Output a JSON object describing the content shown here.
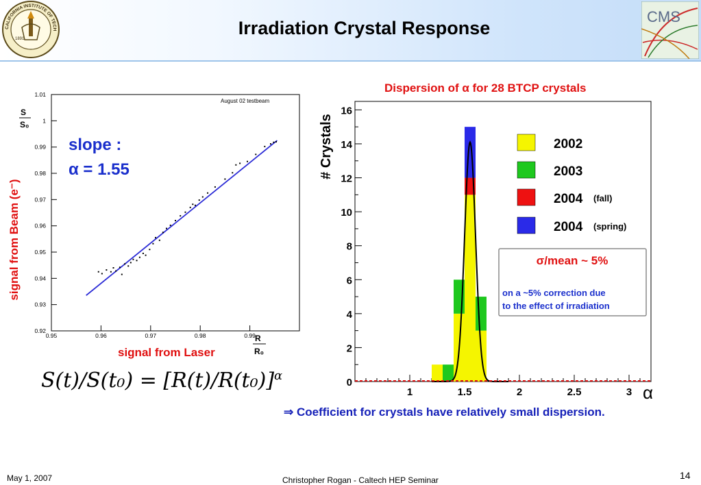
{
  "header": {
    "title": "Irradiation Crystal Response",
    "left_logo": {
      "icon": "caltech-seal-icon",
      "text": "CALIFORNIA INSTITUTE OF TECHNOLOGY",
      "year": "1891"
    },
    "right_logo": {
      "icon": "cms-logo-icon",
      "text": "CMS"
    }
  },
  "left_plot": {
    "tag": "August 02 testbeam",
    "ylabel_top": "S",
    "ylabel_bottom": "S₀",
    "xlabel_top": "R",
    "xlabel_bottom": "R₀",
    "red_ylabel": "signal from Beam (e⁻)",
    "red_xlabel": "signal from Laser",
    "slope_label": "slope :",
    "alpha_label": "α = 1.55",
    "line_color": "#2b2bd6",
    "label_red": "#e01010",
    "label_blue": "#1a2fcc",
    "chart_data": {
      "type": "scatter",
      "xlim": [
        0.95,
        1.0
      ],
      "ylim": [
        0.92,
        1.01
      ],
      "x_ticks": [
        "0.95",
        "0.96",
        "0.97",
        "0.98",
        "0.99"
      ],
      "y_ticks": [
        "0.92",
        "0.93",
        "0.94",
        "0.95",
        "0.96",
        "0.97",
        "0.98",
        "0.99",
        "1",
        "1.01"
      ],
      "fit_line": {
        "x": [
          0.957,
          0.9955
        ],
        "y": [
          0.9335,
          0.9925
        ]
      },
      "points": [
        [
          0.9595,
          0.9425
        ],
        [
          0.9602,
          0.9418
        ],
        [
          0.9611,
          0.9432
        ],
        [
          0.962,
          0.9425
        ],
        [
          0.9625,
          0.944
        ],
        [
          0.963,
          0.9428
        ],
        [
          0.9638,
          0.9442
        ],
        [
          0.9642,
          0.9415
        ],
        [
          0.9648,
          0.9455
        ],
        [
          0.9655,
          0.9447
        ],
        [
          0.966,
          0.946
        ],
        [
          0.9665,
          0.9472
        ],
        [
          0.9672,
          0.9468
        ],
        [
          0.9678,
          0.948
        ],
        [
          0.9685,
          0.9495
        ],
        [
          0.969,
          0.9488
        ],
        [
          0.9698,
          0.951
        ],
        [
          0.9705,
          0.9532
        ],
        [
          0.971,
          0.9555
        ],
        [
          0.9718,
          0.9545
        ],
        [
          0.9725,
          0.9575
        ],
        [
          0.9732,
          0.959
        ],
        [
          0.974,
          0.9602
        ],
        [
          0.975,
          0.962
        ],
        [
          0.976,
          0.9638
        ],
        [
          0.977,
          0.9652
        ],
        [
          0.978,
          0.967
        ],
        [
          0.9785,
          0.9682
        ],
        [
          0.979,
          0.9678
        ],
        [
          0.9798,
          0.9698
        ],
        [
          0.9805,
          0.971
        ],
        [
          0.9815,
          0.9725
        ],
        [
          0.983,
          0.9748
        ],
        [
          0.985,
          0.9778
        ],
        [
          0.9865,
          0.9802
        ],
        [
          0.9872,
          0.9832
        ],
        [
          0.988,
          0.9838
        ],
        [
          0.9895,
          0.9845
        ],
        [
          0.9912,
          0.9872
        ],
        [
          0.993,
          0.9902
        ],
        [
          0.9942,
          0.9912
        ],
        [
          0.9948,
          0.9918
        ],
        [
          0.9953,
          0.992
        ]
      ]
    }
  },
  "formula": "S(t)/S(t₀) = [R(t)/R(t₀)]",
  "formula_exponent": "α",
  "right_plot": {
    "title": "Dispersion of α for 28 BTCP crystals",
    "ylabel": "# Crystals",
    "xlabel": "α",
    "legend": [
      {
        "label": "2002",
        "note": "",
        "color": "#f5f500"
      },
      {
        "label": "2003",
        "note": "",
        "color": "#1ec81e"
      },
      {
        "label": "2004",
        "note": "(fall)",
        "color": "#ee1111"
      },
      {
        "label": "2004",
        "note": "(spring)",
        "color": "#2a2ae8"
      }
    ],
    "info_box": {
      "headline": "σ/mean ~ 5%",
      "line1": "on a ~5% correction due",
      "line2": "to the effect of irradiation"
    },
    "chart_data": {
      "type": "bar",
      "xlim": [
        0.5,
        3.2
      ],
      "ylim": [
        0,
        16.5
      ],
      "x_ticks": [
        "1",
        "1.5",
        "2",
        "2.5",
        "3"
      ],
      "y_ticks": [
        "0",
        "2",
        "4",
        "6",
        "8",
        "10",
        "12",
        "14",
        "16"
      ],
      "bin_width": 0.1,
      "bins_left_edge": [
        1.2,
        1.3,
        1.4,
        1.5,
        1.6
      ],
      "series": [
        {
          "name": "2002",
          "values": [
            1,
            0,
            4,
            11,
            3
          ]
        },
        {
          "name": "2003",
          "values": [
            0,
            1,
            2,
            0,
            2
          ]
        },
        {
          "name": "2004 (fall)",
          "values": [
            0,
            0,
            0,
            1,
            0
          ]
        },
        {
          "name": "2004 (spring)",
          "values": [
            0,
            0,
            0,
            3,
            0
          ]
        }
      ],
      "gaussian_fit": {
        "mean": 1.55,
        "sigma": 0.05,
        "peak": 14.1
      }
    }
  },
  "conclusion": "⇒ Coefficient for crystals have relatively small dispersion.",
  "footer": {
    "date": "May 1, 2007",
    "author": "Christopher Rogan - Caltech HEP Seminar",
    "page": "14"
  }
}
